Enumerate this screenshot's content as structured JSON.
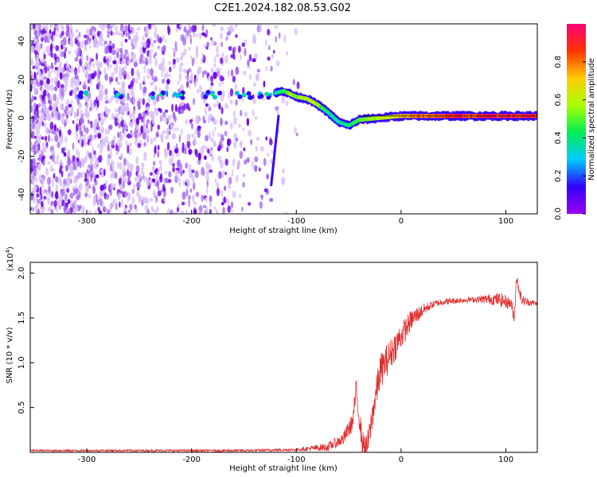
{
  "title": "C2E1.2024.182.08.53.G02",
  "chart_data": [
    {
      "type": "heatmap",
      "xlabel": "Height of straight line (km)",
      "ylabel": "Frequency (Hz)",
      "xlim": [
        -354,
        130
      ],
      "ylim": [
        -50,
        49
      ],
      "x_ticks": [
        -300,
        -200,
        -100,
        0,
        100
      ],
      "y_ticks": [
        -40,
        -20,
        0,
        20,
        40
      ],
      "colorbar": {
        "label": "Normalized spectral amplitude",
        "range": [
          0,
          1
        ],
        "ticks": [
          0.0,
          0.2,
          0.4,
          0.6,
          0.8
        ],
        "colormap": [
          "#9900ee",
          "#3300ff",
          "#00ccff",
          "#00ee55",
          "#aaff00",
          "#ffcc00",
          "#ff3300",
          "#ff0077"
        ]
      },
      "signal_track": [
        {
          "x": -120,
          "y": 13,
          "amp": 0.3
        },
        {
          "x": -112,
          "y": 14,
          "amp": 0.45
        },
        {
          "x": -100,
          "y": 11,
          "amp": 0.55
        },
        {
          "x": -90,
          "y": 10,
          "amp": 0.6
        },
        {
          "x": -80,
          "y": 7,
          "amp": 0.55
        },
        {
          "x": -70,
          "y": 3,
          "amp": 0.4
        },
        {
          "x": -60,
          "y": -2,
          "amp": 0.35
        },
        {
          "x": -50,
          "y": -4,
          "amp": 0.4
        },
        {
          "x": -40,
          "y": -1,
          "amp": 0.5
        },
        {
          "x": -20,
          "y": 0,
          "amp": 0.6
        },
        {
          "x": 0,
          "y": 1,
          "amp": 0.7
        },
        {
          "x": 40,
          "y": 1,
          "amp": 0.85
        },
        {
          "x": 80,
          "y": 1,
          "amp": 0.9
        },
        {
          "x": 100,
          "y": 1,
          "amp": 0.9
        },
        {
          "x": 130,
          "y": 1,
          "amp": 0.9
        }
      ],
      "oblique_streak": [
        {
          "x": -117,
          "y": 1
        },
        {
          "x": -124,
          "y": -35
        }
      ],
      "early_blobs_at_12Hz": [
        -300,
        -270,
        -230,
        -210,
        -180,
        -150,
        -128
      ],
      "noise_extent_x": [
        -354,
        -100
      ],
      "noise_density": {
        "x_start": -354,
        "x_end": -95,
        "density_at_start": 0.9,
        "density_at_end": 0.0
      }
    },
    {
      "type": "line",
      "xlabel": "Height of straight line (km)",
      "ylabel": "SNR (10 * v/v)",
      "y_exponent": "(x10",
      "y_exponent_power": "4",
      "xlim": [
        -354,
        130
      ],
      "ylim": [
        0,
        2.12
      ],
      "x_ticks": [
        -300,
        -200,
        -100,
        0,
        100
      ],
      "y_ticks": [
        0.5,
        1.0,
        1.5,
        2.0
      ],
      "series": [
        {
          "color": "#e03030",
          "x": [
            -354,
            -150,
            -100,
            -70,
            -55,
            -46,
            -43,
            -40,
            -37,
            -33,
            -30,
            -27,
            -20,
            -10,
            0,
            10,
            20,
            30,
            40,
            60,
            80,
            90,
            95,
            100,
            105,
            108,
            110,
            115,
            120,
            130
          ],
          "y": [
            0.02,
            0.02,
            0.03,
            0.06,
            0.15,
            0.35,
            0.7,
            0.4,
            0.1,
            0.04,
            0.2,
            0.45,
            0.9,
            1.1,
            1.3,
            1.48,
            1.58,
            1.65,
            1.68,
            1.7,
            1.71,
            1.71,
            1.7,
            1.68,
            1.66,
            1.5,
            1.95,
            1.7,
            1.68,
            1.66
          ]
        }
      ],
      "noise_amplitude": [
        {
          "x": -354,
          "amp": 0.01
        },
        {
          "x": -100,
          "amp": 0.015
        },
        {
          "x": -60,
          "amp": 0.06
        },
        {
          "x": -20,
          "amp": 0.2
        },
        {
          "x": 0,
          "amp": 0.15
        },
        {
          "x": 30,
          "amp": 0.04
        },
        {
          "x": 70,
          "amp": 0.03
        },
        {
          "x": 95,
          "amp": 0.08
        },
        {
          "x": 115,
          "amp": 0.06
        },
        {
          "x": 130,
          "amp": 0.02
        }
      ]
    }
  ]
}
